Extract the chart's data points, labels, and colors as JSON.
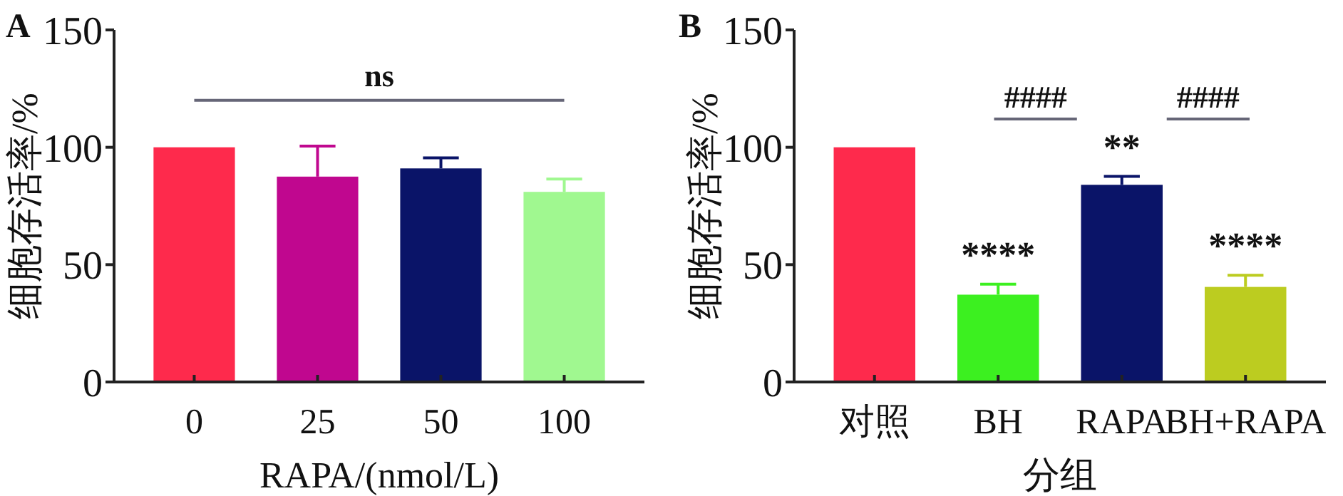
{
  "chart_data": [
    {
      "type": "bar",
      "title": "A",
      "xlabel": "RAPA/(nmol/L)",
      "ylabel": "细胞存活率/%",
      "categories": [
        "0",
        "25",
        "50",
        "100"
      ],
      "values": [
        100,
        87.5,
        91,
        81
      ],
      "errors": [
        null,
        13,
        4.5,
        5.5
      ],
      "colors": [
        "#fe2a4c",
        "#c0078f",
        "#0a1468",
        "#a0f890"
      ],
      "ylim": [
        0,
        150
      ],
      "yticks": [
        0,
        50,
        100,
        150
      ],
      "ref_lines": [
        {
          "axis": "y",
          "value": 120,
          "label": "ns",
          "color": "#666677"
        }
      ]
    },
    {
      "type": "bar",
      "title": "B",
      "xlabel": "分组",
      "ylabel": "细胞存活率/%",
      "categories": [
        "对照",
        "BH",
        "RAPA",
        "BH+RAPA"
      ],
      "values": [
        100,
        37.2,
        84,
        40.5
      ],
      "errors": [
        null,
        4.5,
        3.6,
        5
      ],
      "colors": [
        "#fe2a4c",
        "#3cf020",
        "#0a1468",
        "#bccc20"
      ],
      "ylim": [
        0,
        150
      ],
      "yticks": [
        0,
        50,
        100,
        150
      ],
      "annotations": [
        "****",
        "**",
        "****",
        "####",
        "####"
      ]
    }
  ]
}
